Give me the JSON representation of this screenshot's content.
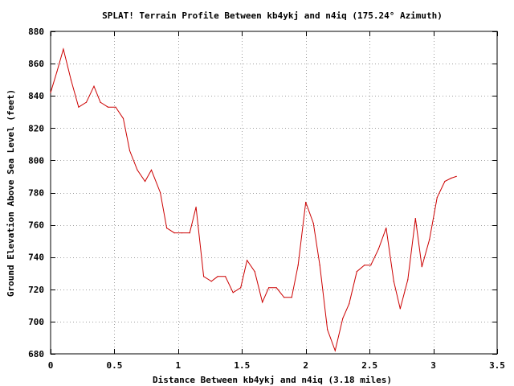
{
  "chart_data": {
    "type": "line",
    "title": "SPLAT! Terrain Profile Between kb4ykj and n4iq (175.24° Azimuth)",
    "xlabel": "Distance Between kb4ykj and n4iq (3.18 miles)",
    "ylabel": "Ground Elevation Above Sea Level (feet)",
    "xlim": [
      0,
      3.5
    ],
    "ylim": [
      680,
      880
    ],
    "xticks": [
      "0",
      "0.5",
      "1",
      "1.5",
      "2",
      "2.5",
      "3",
      "3.5"
    ],
    "yticks": [
      "680",
      "700",
      "720",
      "740",
      "760",
      "780",
      "800",
      "820",
      "840",
      "860",
      "880"
    ],
    "grid": true,
    "line_color": "#cc0000",
    "series": [
      {
        "x": [
          0,
          0.05,
          0.1,
          0.16,
          0.22,
          0.28,
          0.34,
          0.39,
          0.45,
          0.51,
          0.57,
          0.62,
          0.68,
          0.74,
          0.79,
          0.86,
          0.91,
          0.97,
          1.03,
          1.09,
          1.14,
          1.2,
          1.26,
          1.31,
          1.37,
          1.43,
          1.49,
          1.54,
          1.6,
          1.66,
          1.71,
          1.77,
          1.83,
          1.89,
          1.94,
          2.0,
          2.06,
          2.11,
          2.17,
          2.23,
          2.29,
          2.34,
          2.4,
          2.46,
          2.51,
          2.57,
          2.63,
          2.69,
          2.74,
          2.8,
          2.86,
          2.91,
          2.97,
          3.03,
          3.09,
          3.14,
          3.18
        ],
        "y": [
          842,
          855,
          869,
          850,
          833,
          836,
          846,
          836,
          833,
          833,
          826,
          806,
          794,
          787,
          794,
          780,
          758,
          755,
          755,
          755,
          771,
          728,
          725,
          728,
          728,
          718,
          721,
          738,
          731,
          712,
          721,
          721,
          715,
          715,
          735,
          774,
          761,
          735,
          695,
          682,
          702,
          711,
          731,
          735,
          735,
          745,
          758,
          725,
          708,
          726,
          764,
          734,
          751,
          777,
          787,
          789,
          790
        ]
      }
    ]
  }
}
